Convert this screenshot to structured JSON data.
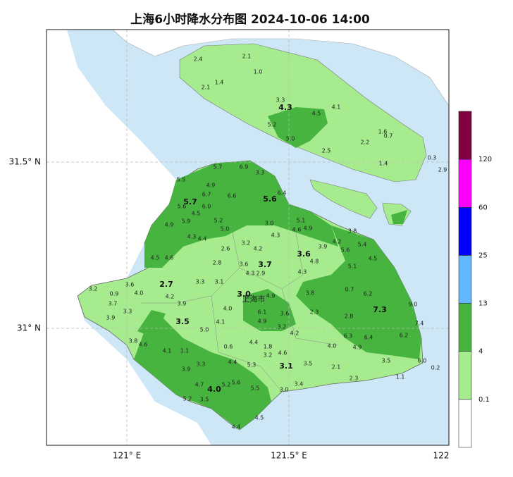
{
  "title": "上海6小时降水分布图 2024-10-06 14:00",
  "axes": {
    "xticks": [
      "121° E",
      "121.5° E",
      "122"
    ],
    "yticks": [
      "31.5° N",
      "31° N"
    ]
  },
  "city_label": "上海市",
  "legend": {
    "levels": [
      "0.1",
      "4",
      "13",
      "25",
      "60",
      "120"
    ],
    "colors": [
      "#ffffff",
      "#a6ec8f",
      "#46b43f",
      "#62b7ff",
      "#0000ff",
      "#ff00ff",
      "#800040"
    ]
  },
  "stations": [
    "2.4",
    "2.1",
    "1.0",
    "1.4",
    "2.1",
    "3.3",
    "4.3",
    "4.5",
    "4.1",
    "5.2",
    "5.0",
    "1.6",
    "0.7",
    "2.2",
    "2.5",
    "1.4",
    "0.3",
    "2.9",
    "5.7",
    "6.9",
    "3.3",
    "5.5",
    "4.9",
    "6.7",
    "6.6",
    "5.6",
    "6.4",
    "5.7",
    "5.6",
    "6.0",
    "4.5",
    "5.9",
    "5.2",
    "5.0",
    "4.9",
    "3.0",
    "5.1",
    "4.6",
    "4.9",
    "4.3",
    "4.4",
    "3.2",
    "4.3",
    "3.6",
    "3.8",
    "3.9",
    "4.2",
    "5.6",
    "5.4",
    "2.6",
    "4.2",
    "4.5",
    "4.6",
    "2.8",
    "3.6",
    "3.7",
    "4.8",
    "5.1",
    "4.5",
    "4.3",
    "2.9",
    "4.3",
    "3.2",
    "3.6",
    "0.9",
    "4.0",
    "2.7",
    "3.3",
    "3.1",
    "3.7",
    "3.0",
    "4.9",
    "3.8",
    "0.7",
    "6.2",
    "3.3",
    "4.2",
    "3.9",
    "4.0",
    "6.1",
    "3.6",
    "2.3",
    "7.3",
    "9.0",
    "3.9",
    "3.5",
    "4.1",
    "4.9",
    "3.2",
    "2.8",
    "7.4",
    "3.8",
    "4.6",
    "5.0",
    "4.2",
    "6.3",
    "6.4",
    "6.2",
    "4.4",
    "1.8",
    "4.0",
    "4.9",
    "0.6",
    "3.2",
    "4.6",
    "4.1",
    "1.1",
    "4.4",
    "3.5",
    "3.1",
    "5.3",
    "3.9",
    "3.3",
    "3.5",
    "6.0",
    "0.2",
    "2.1",
    "2.3",
    "1.1",
    "4.7",
    "4.0",
    "5.2",
    "5.6",
    "5.5",
    "3.0",
    "3.4",
    "5.2",
    "3.5",
    "4.5",
    "4.4"
  ]
}
